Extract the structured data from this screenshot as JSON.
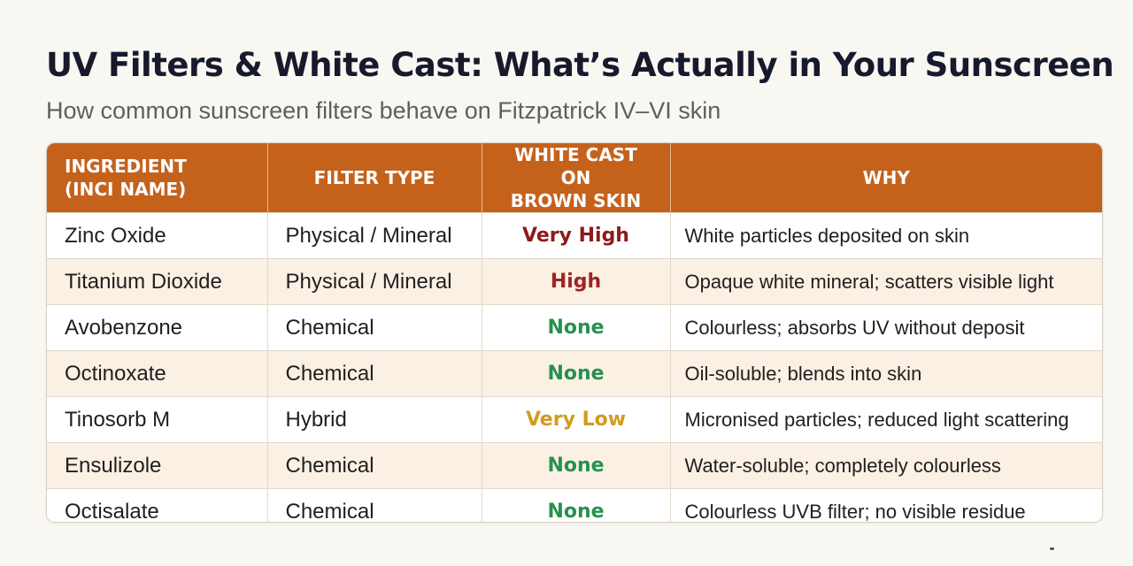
{
  "title": "UV Filters & White Cast: What’s Actually in Your Sunscreen",
  "subtitle": "How common sunscreen filters behave on Fitzpatrick IV–VI skin",
  "colors": {
    "header_bg": "#c4621c",
    "very_high": "#8e1a1a",
    "high": "#9e2424",
    "none": "#27914f",
    "very_low": "#d39a1e",
    "row_alt": "#fbf0e4"
  },
  "table": {
    "headers": {
      "ingredient_line1": "INGREDIENT",
      "ingredient_line2": "(INCI NAME)",
      "filter_type": "FILTER TYPE",
      "white_cast_line1": "WHITE CAST ON",
      "white_cast_line2": "BROWN SKIN",
      "why": "WHY"
    },
    "rows": [
      {
        "ingredient": "Zinc Oxide",
        "filter_type": "Physical / Mineral",
        "white_cast": "Very High",
        "level": "very-high",
        "why": "White particles deposited on skin"
      },
      {
        "ingredient": "Titanium Dioxide",
        "filter_type": "Physical / Mineral",
        "white_cast": "High",
        "level": "high",
        "why": "Opaque white mineral; scatters visible light"
      },
      {
        "ingredient": "Avobenzone",
        "filter_type": "Chemical",
        "white_cast": "None",
        "level": "none",
        "why": "Colourless; absorbs UV without deposit"
      },
      {
        "ingredient": "Octinoxate",
        "filter_type": "Chemical",
        "white_cast": "None",
        "level": "none",
        "why": "Oil-soluble; blends into skin"
      },
      {
        "ingredient": "Tinosorb M",
        "filter_type": "Hybrid",
        "white_cast": "Very Low",
        "level": "very-low",
        "why": "Micronised particles; reduced light scattering"
      },
      {
        "ingredient": "Ensulizole",
        "filter_type": "Chemical",
        "white_cast": "None",
        "level": "none",
        "why": "Water-soluble; completely colourless"
      },
      {
        "ingredient": "Octisalate",
        "filter_type": "Chemical",
        "white_cast": "None",
        "level": "none",
        "why": "Colourless UVB filter; no visible residue"
      }
    ]
  }
}
